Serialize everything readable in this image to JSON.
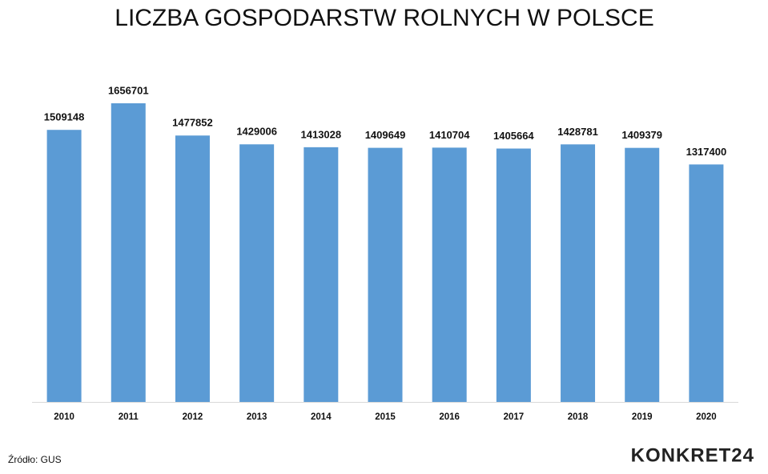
{
  "chart_data": {
    "type": "bar",
    "title": "LICZBA GOSPODARSTW ROLNYCH W POLSCE",
    "categories": [
      "2010",
      "2011",
      "2012",
      "2013",
      "2014",
      "2015",
      "2016",
      "2017",
      "2018",
      "2019",
      "2020"
    ],
    "values": [
      1509148,
      1656701,
      1477852,
      1429006,
      1413028,
      1409649,
      1410704,
      1405664,
      1428781,
      1409379,
      1317400
    ],
    "color": "#5b9bd5",
    "source": "Źródło: GUS",
    "logo": "KONKRET24"
  }
}
